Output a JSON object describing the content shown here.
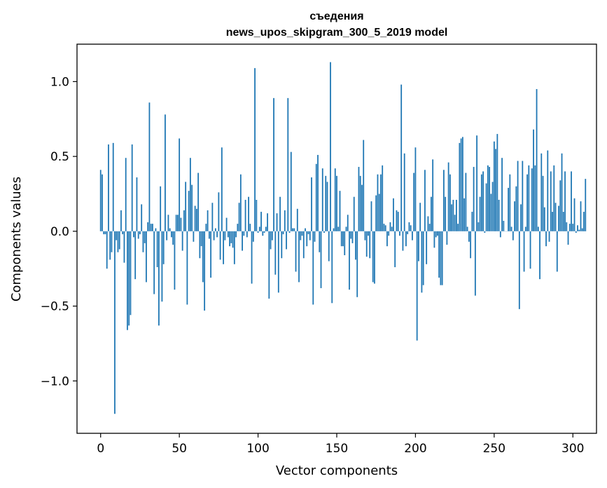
{
  "chart_data": {
    "type": "bar",
    "title": "съедения",
    "subtitle": "news_upos_skipgram_300_5_2019 model",
    "xlabel": "Vector components",
    "ylabel": "Components values",
    "xlim": [
      -15,
      315
    ],
    "ylim": [
      -1.35,
      1.25
    ],
    "xticks": [
      0,
      50,
      100,
      150,
      200,
      250,
      300
    ],
    "yticks": [
      -1.0,
      -0.5,
      0.0,
      0.5,
      1.0
    ],
    "xtick_labels": [
      "0",
      "50",
      "100",
      "150",
      "200",
      "250",
      "300"
    ],
    "ytick_labels": [
      "−1.0",
      "−0.5",
      "0.0",
      "0.5",
      "1.0"
    ],
    "bar_color": "#1f77b4",
    "grid": false,
    "x_start": 0,
    "values": [
      0.41,
      0.38,
      -0.02,
      -0.02,
      -0.25,
      0.58,
      -0.19,
      -0.14,
      0.59,
      -1.22,
      -0.06,
      -0.14,
      -0.12,
      0.14,
      -0.02,
      -0.21,
      0.49,
      -0.66,
      -0.63,
      -0.56,
      0.58,
      -0.04,
      -0.32,
      0.36,
      -0.05,
      -0.02,
      0.18,
      -0.14,
      -0.08,
      -0.34,
      0.06,
      0.86,
      0.05,
      0.05,
      -0.42,
      0.02,
      -0.24,
      -0.63,
      0.3,
      -0.47,
      -0.22,
      0.78,
      -0.06,
      0.11,
      0.02,
      -0.04,
      -0.09,
      -0.39,
      0.11,
      0.11,
      0.62,
      0.09,
      -0.13,
      0.14,
      0.33,
      -0.49,
      0.27,
      0.49,
      0.31,
      -0.07,
      0.17,
      0.15,
      0.39,
      -0.18,
      -0.1,
      -0.34,
      -0.53,
      0.05,
      0.14,
      -0.05,
      -0.31,
      0.19,
      -0.06,
      0.02,
      -0.04,
      0.26,
      -0.19,
      0.56,
      -0.22,
      -0.06,
      0.09,
      -0.04,
      -0.1,
      -0.08,
      -0.11,
      -0.22,
      -0.04,
      0.05,
      0.19,
      0.38,
      -0.13,
      -0.03,
      0.21,
      -0.04,
      0.23,
      0.05,
      -0.35,
      -0.07,
      1.09,
      0.21,
      -0.01,
      0.03,
      0.13,
      -0.03,
      -0.01,
      0.03,
      0.12,
      -0.45,
      -0.12,
      -0.06,
      0.89,
      -0.29,
      0.12,
      -0.41,
      0.23,
      -0.18,
      -0.02,
      0.14,
      -0.12,
      0.89,
      -0.01,
      0.53,
      0.02,
      0.02,
      -0.27,
      0.15,
      -0.34,
      -0.06,
      -0.03,
      -0.18,
      0.02,
      -0.1,
      -0.02,
      -0.06,
      0.36,
      -0.49,
      -0.07,
      0.45,
      0.51,
      -0.14,
      -0.38,
      0.42,
      -0.01,
      0.37,
      0.33,
      -0.2,
      1.13,
      -0.48,
      0.02,
      0.42,
      0.37,
      0.03,
      0.27,
      -0.1,
      -0.1,
      -0.16,
      0.03,
      0.11,
      -0.39,
      -0.05,
      -0.08,
      0.23,
      -0.19,
      -0.44,
      0.43,
      0.37,
      0.31,
      0.61,
      -0.06,
      -0.17,
      -0.03,
      -0.18,
      0.2,
      -0.34,
      -0.35,
      0.24,
      0.38,
      0.25,
      0.38,
      0.44,
      0.05,
      0.04,
      -0.1,
      -0.03,
      0.06,
      0.03,
      0.22,
      -0.24,
      0.14,
      0.13,
      -0.03,
      0.98,
      -0.13,
      0.52,
      -0.1,
      -0.02,
      0.06,
      0.04,
      -0.06,
      0.39,
      0.56,
      -0.73,
      -0.2,
      0.19,
      -0.41,
      -0.36,
      0.41,
      -0.22,
      0.1,
      0.05,
      0.23,
      0.48,
      -0.11,
      -0.04,
      -0.03,
      -0.31,
      -0.36,
      -0.36,
      0.41,
      0.23,
      -0.09,
      0.46,
      0.38,
      0.18,
      0.21,
      0.11,
      0.21,
      0.05,
      0.59,
      0.62,
      0.63,
      0.22,
      0.39,
      0.03,
      -0.07,
      -0.18,
      0.13,
      0.43,
      -0.43,
      0.64,
      0.06,
      0.23,
      0.38,
      0.4,
      -0.01,
      0.32,
      0.44,
      0.43,
      0.25,
      0.33,
      0.6,
      0.55,
      0.65,
      0.21,
      -0.04,
      0.49,
      0.07,
      0.0,
      0.0,
      0.29,
      0.38,
      0.03,
      -0.06,
      0.2,
      0.3,
      0.47,
      -0.52,
      0.18,
      0.47,
      -0.27,
      0.03,
      0.38,
      0.44,
      -0.25,
      0.42,
      0.68,
      0.44,
      0.95,
      0.03,
      -0.32,
      0.52,
      0.37,
      0.16,
      -0.1,
      0.54,
      -0.07,
      0.4,
      0.13,
      0.44,
      0.19,
      -0.27,
      0.17,
      0.34,
      0.52,
      0.13,
      0.4,
      0.06,
      -0.09,
      0.05,
      0.4,
      0.05,
      0.22,
      -0.01,
      0.04,
      0.01,
      0.2,
      0.02,
      0.13,
      0.35
    ]
  }
}
